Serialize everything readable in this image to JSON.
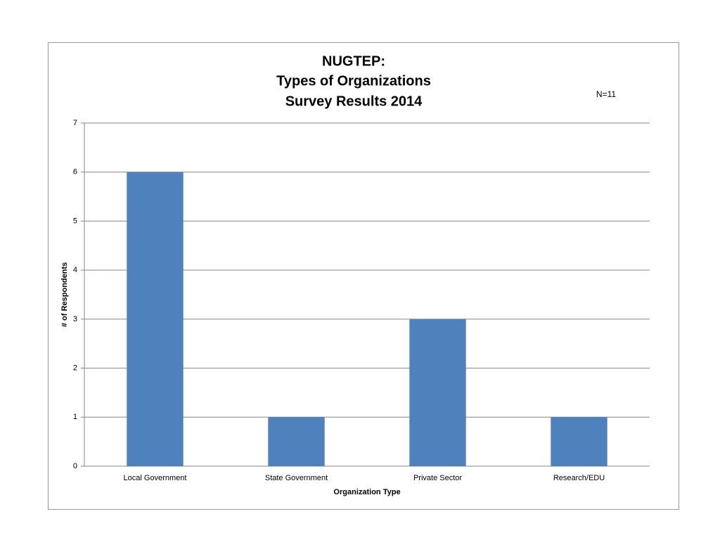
{
  "chart_data": {
    "type": "bar",
    "title": [
      "NUGTEP:",
      "Types of Organizations",
      "Survey Results 2014"
    ],
    "annotation": "N=11",
    "x_label": "Organization Type",
    "y_label": "# of Respondents",
    "categories": [
      "Local Government",
      "State Government",
      "Private Sector",
      "Research/EDU"
    ],
    "values": [
      6,
      1,
      3,
      1
    ],
    "color": "#4f81bd",
    "ylim": [
      0,
      7
    ],
    "yticks": [
      0,
      1,
      2,
      3,
      4,
      5,
      6,
      7
    ],
    "grid": true
  }
}
